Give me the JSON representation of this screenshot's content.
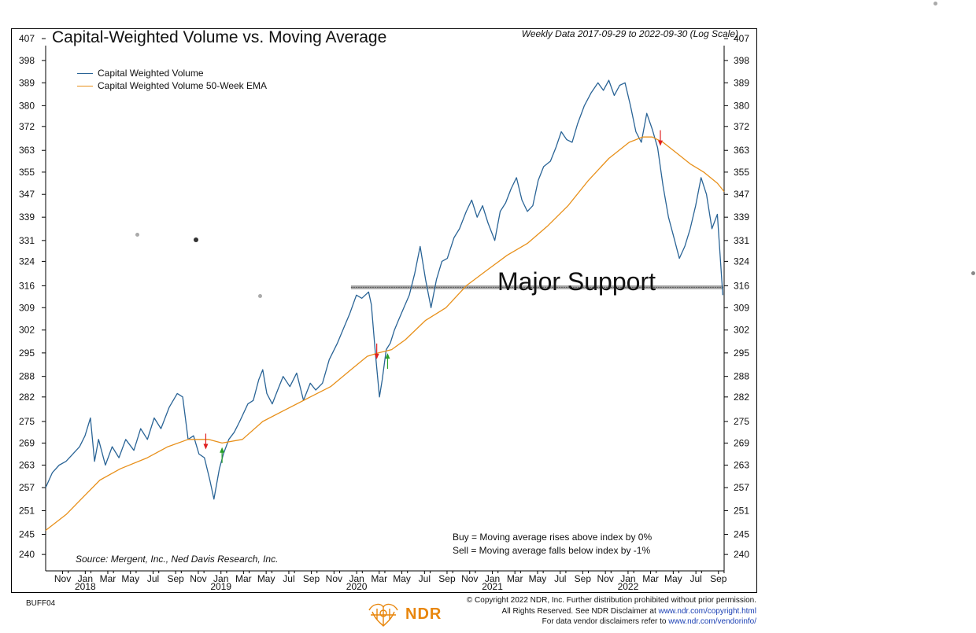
{
  "chart_data": {
    "type": "line",
    "title": "Capital-Weighted Volume vs. Moving Average",
    "subtitle": "Weekly Data 2017-09-29 to 2022-09-30 (Log Scale)",
    "yscale": "log",
    "ylim": [
      236,
      410
    ],
    "yticks": [
      407,
      398,
      389,
      380,
      372,
      363,
      355,
      347,
      339,
      331,
      324,
      316,
      309,
      302,
      295,
      288,
      282,
      275,
      269,
      263,
      257,
      251,
      245,
      240
    ],
    "xlim": [
      2017.75,
      2022.75
    ],
    "x_month_ticks": [
      {
        "x": 2017.875,
        "label": "Nov"
      },
      {
        "x": 2018.042,
        "label": "Jan"
      },
      {
        "x": 2018.208,
        "label": "Mar"
      },
      {
        "x": 2018.375,
        "label": "May"
      },
      {
        "x": 2018.542,
        "label": "Jul"
      },
      {
        "x": 2018.708,
        "label": "Sep"
      },
      {
        "x": 2018.875,
        "label": "Nov"
      },
      {
        "x": 2019.042,
        "label": "Jan"
      },
      {
        "x": 2019.208,
        "label": "Mar"
      },
      {
        "x": 2019.375,
        "label": "May"
      },
      {
        "x": 2019.542,
        "label": "Jul"
      },
      {
        "x": 2019.708,
        "label": "Sep"
      },
      {
        "x": 2019.875,
        "label": "Nov"
      },
      {
        "x": 2020.042,
        "label": "Jan"
      },
      {
        "x": 2020.208,
        "label": "Mar"
      },
      {
        "x": 2020.375,
        "label": "May"
      },
      {
        "x": 2020.542,
        "label": "Jul"
      },
      {
        "x": 2020.708,
        "label": "Sep"
      },
      {
        "x": 2020.875,
        "label": "Nov"
      },
      {
        "x": 2021.042,
        "label": "Jan"
      },
      {
        "x": 2021.208,
        "label": "Mar"
      },
      {
        "x": 2021.375,
        "label": "May"
      },
      {
        "x": 2021.542,
        "label": "Jul"
      },
      {
        "x": 2021.708,
        "label": "Sep"
      },
      {
        "x": 2021.875,
        "label": "Nov"
      },
      {
        "x": 2022.042,
        "label": "Jan"
      },
      {
        "x": 2022.208,
        "label": "Mar"
      },
      {
        "x": 2022.375,
        "label": "May"
      },
      {
        "x": 2022.542,
        "label": "Jul"
      },
      {
        "x": 2022.708,
        "label": "Sep"
      }
    ],
    "x_year_labels": [
      {
        "x": 2018.042,
        "label": "2018"
      },
      {
        "x": 2019.042,
        "label": "2019"
      },
      {
        "x": 2020.042,
        "label": "2020"
      },
      {
        "x": 2021.042,
        "label": "2021"
      },
      {
        "x": 2022.042,
        "label": "2022"
      }
    ],
    "series": [
      {
        "name": "Capital Weighted Volume",
        "color": "#2a6496",
        "points": [
          [
            2017.75,
            257
          ],
          [
            2017.8,
            261
          ],
          [
            2017.85,
            263
          ],
          [
            2017.9,
            264
          ],
          [
            2017.95,
            266
          ],
          [
            2018.0,
            268
          ],
          [
            2018.04,
            271
          ],
          [
            2018.08,
            276
          ],
          [
            2018.11,
            264
          ],
          [
            2018.14,
            270
          ],
          [
            2018.19,
            263
          ],
          [
            2018.24,
            268
          ],
          [
            2018.29,
            265
          ],
          [
            2018.34,
            270
          ],
          [
            2018.4,
            267
          ],
          [
            2018.45,
            273
          ],
          [
            2018.5,
            270
          ],
          [
            2018.55,
            276
          ],
          [
            2018.6,
            273
          ],
          [
            2018.66,
            279
          ],
          [
            2018.72,
            283
          ],
          [
            2018.76,
            282
          ],
          [
            2018.8,
            270
          ],
          [
            2018.84,
            271
          ],
          [
            2018.88,
            266
          ],
          [
            2018.92,
            265
          ],
          [
            2018.96,
            259
          ],
          [
            2018.99,
            254
          ],
          [
            2019.03,
            262
          ],
          [
            2019.06,
            266
          ],
          [
            2019.1,
            270
          ],
          [
            2019.14,
            272
          ],
          [
            2019.18,
            275
          ],
          [
            2019.24,
            280
          ],
          [
            2019.28,
            281
          ],
          [
            2019.32,
            287
          ],
          [
            2019.35,
            290
          ],
          [
            2019.38,
            283
          ],
          [
            2019.42,
            280
          ],
          [
            2019.46,
            284
          ],
          [
            2019.5,
            288
          ],
          [
            2019.55,
            285
          ],
          [
            2019.6,
            289
          ],
          [
            2019.65,
            281
          ],
          [
            2019.7,
            286
          ],
          [
            2019.74,
            284
          ],
          [
            2019.79,
            286
          ],
          [
            2019.84,
            293
          ],
          [
            2019.9,
            298
          ],
          [
            2019.95,
            303
          ],
          [
            2019.99,
            307
          ],
          [
            2020.04,
            313
          ],
          [
            2020.08,
            312
          ],
          [
            2020.13,
            314
          ],
          [
            2020.15,
            310
          ],
          [
            2020.18,
            295
          ],
          [
            2020.21,
            282
          ],
          [
            2020.23,
            287
          ],
          [
            2020.26,
            296
          ],
          [
            2020.29,
            298
          ],
          [
            2020.32,
            302
          ],
          [
            2020.35,
            305
          ],
          [
            2020.39,
            309
          ],
          [
            2020.43,
            313
          ],
          [
            2020.47,
            320
          ],
          [
            2020.51,
            329
          ],
          [
            2020.55,
            318
          ],
          [
            2020.59,
            309
          ],
          [
            2020.63,
            318
          ],
          [
            2020.67,
            324
          ],
          [
            2020.71,
            325
          ],
          [
            2020.76,
            332
          ],
          [
            2020.8,
            335
          ],
          [
            2020.85,
            341
          ],
          [
            2020.89,
            345
          ],
          [
            2020.93,
            339
          ],
          [
            2020.97,
            343
          ],
          [
            2021.01,
            337
          ],
          [
            2021.06,
            331
          ],
          [
            2021.1,
            341
          ],
          [
            2021.14,
            344
          ],
          [
            2021.18,
            349
          ],
          [
            2021.22,
            353
          ],
          [
            2021.26,
            345
          ],
          [
            2021.3,
            341
          ],
          [
            2021.34,
            343
          ],
          [
            2021.38,
            352
          ],
          [
            2021.42,
            357
          ],
          [
            2021.47,
            359
          ],
          [
            2021.51,
            364
          ],
          [
            2021.55,
            370
          ],
          [
            2021.59,
            367
          ],
          [
            2021.63,
            366
          ],
          [
            2021.67,
            373
          ],
          [
            2021.72,
            380
          ],
          [
            2021.77,
            385
          ],
          [
            2021.82,
            389
          ],
          [
            2021.86,
            386
          ],
          [
            2021.9,
            390
          ],
          [
            2021.94,
            384
          ],
          [
            2021.98,
            388
          ],
          [
            2022.02,
            389
          ],
          [
            2022.06,
            380
          ],
          [
            2022.1,
            370
          ],
          [
            2022.14,
            366
          ],
          [
            2022.18,
            377
          ],
          [
            2022.22,
            371
          ],
          [
            2022.26,
            364
          ],
          [
            2022.3,
            350
          ],
          [
            2022.34,
            339
          ],
          [
            2022.38,
            332
          ],
          [
            2022.42,
            325
          ],
          [
            2022.46,
            329
          ],
          [
            2022.5,
            335
          ],
          [
            2022.54,
            343
          ],
          [
            2022.58,
            353
          ],
          [
            2022.62,
            347
          ],
          [
            2022.66,
            335
          ],
          [
            2022.7,
            340
          ],
          [
            2022.74,
            313
          ]
        ]
      },
      {
        "name": "Capital Weighted Volume 50-Week EMA",
        "color": "#e8901a",
        "points": [
          [
            2017.75,
            246
          ],
          [
            2017.9,
            250
          ],
          [
            2018.04,
            255
          ],
          [
            2018.15,
            259
          ],
          [
            2018.3,
            262
          ],
          [
            2018.5,
            265
          ],
          [
            2018.65,
            268
          ],
          [
            2018.8,
            270
          ],
          [
            2018.95,
            270
          ],
          [
            2019.05,
            269
          ],
          [
            2019.2,
            270
          ],
          [
            2019.35,
            275
          ],
          [
            2019.5,
            278
          ],
          [
            2019.7,
            282
          ],
          [
            2019.85,
            285
          ],
          [
            2020.0,
            290
          ],
          [
            2020.12,
            294
          ],
          [
            2020.2,
            295
          ],
          [
            2020.3,
            296
          ],
          [
            2020.4,
            299
          ],
          [
            2020.55,
            305
          ],
          [
            2020.7,
            309
          ],
          [
            2020.85,
            316
          ],
          [
            2021.0,
            321
          ],
          [
            2021.15,
            326
          ],
          [
            2021.3,
            330
          ],
          [
            2021.45,
            336
          ],
          [
            2021.6,
            343
          ],
          [
            2021.75,
            352
          ],
          [
            2021.9,
            360
          ],
          [
            2022.05,
            366
          ],
          [
            2022.15,
            368
          ],
          [
            2022.22,
            368
          ],
          [
            2022.3,
            366
          ],
          [
            2022.4,
            362
          ],
          [
            2022.5,
            358
          ],
          [
            2022.6,
            355
          ],
          [
            2022.7,
            351
          ],
          [
            2022.75,
            348
          ]
        ]
      }
    ],
    "signals": [
      {
        "x": 2018.93,
        "y": 269,
        "type": "sell"
      },
      {
        "x": 2019.05,
        "y": 267,
        "type": "buy"
      },
      {
        "x": 2020.19,
        "y": 295,
        "type": "sell"
      },
      {
        "x": 2020.27,
        "y": 294,
        "type": "buy"
      },
      {
        "x": 2022.28,
        "y": 367,
        "type": "sell"
      }
    ],
    "support_line": {
      "y": 315.5,
      "x_start": 2020.0,
      "x_end": 2022.75,
      "label": "Major Support"
    },
    "annotations": {
      "buy_rule": "Buy = Moving average rises above index by 0%",
      "sell_rule": "Sell = Moving average falls below index by -1%",
      "source": "Source:  Mergent, Inc., Ned Davis Research, Inc."
    }
  },
  "footer": {
    "code": "BUFF04",
    "brand": "NDR",
    "line1": "© Copyright 2022 NDR, Inc. Further distribution prohibited without prior permission.",
    "line2_text": "All Rights Reserved. See NDR Disclaimer at ",
    "line2_link": "www.ndr.com/copyright.html",
    "line3_text": "For data vendor disclaimers refer to ",
    "line3_link": "www.ndr.com/vendorinfo/"
  },
  "colors": {
    "volume_line": "#2a6496",
    "ema_line": "#e8901a",
    "sell_arrow": "#e02020",
    "buy_arrow": "#28a028",
    "brand_orange": "#e8860c",
    "link_blue": "#1a3fb3"
  }
}
